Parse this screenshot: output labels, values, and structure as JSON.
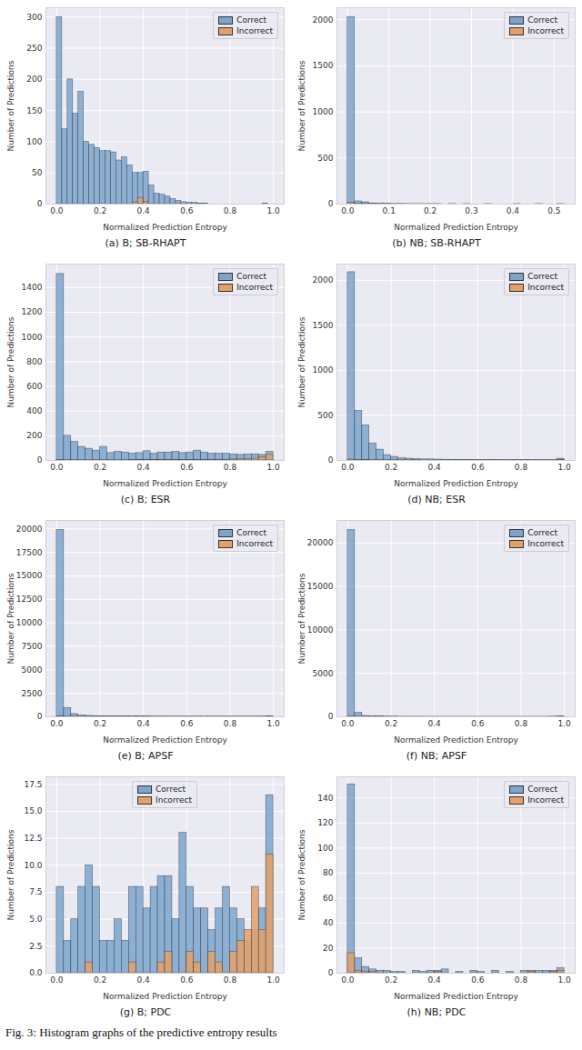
{
  "caption": "Fig. 3: Histogram graphs of the predictive entropy results",
  "chart_data": [
    {
      "type": "histogram",
      "title": "(a) B; SB-RHAPT",
      "x_label": "Normalized Prediction Entropy",
      "y_label": "Number of Predictions",
      "bins": [
        0,
        0.025,
        0.05,
        0.075,
        0.1,
        0.125,
        0.15,
        0.175,
        0.2,
        0.225,
        0.25,
        0.275,
        0.3,
        0.325,
        0.35,
        0.375,
        0.4,
        0.425,
        0.45,
        0.475,
        0.5,
        0.525,
        0.55,
        0.575,
        0.6,
        0.625,
        0.65,
        0.675,
        0.7,
        0.725,
        0.75,
        0.775,
        0.8,
        0.825,
        0.85,
        0.875,
        0.9,
        0.925,
        0.95,
        0.975,
        1
      ],
      "series": [
        {
          "name": "Correct",
          "color": "#7ba5cf",
          "values": [
            300,
            120,
            200,
            145,
            180,
            100,
            95,
            90,
            85,
            85,
            83,
            70,
            75,
            62,
            50,
            50,
            52,
            30,
            17,
            15,
            12,
            8,
            5,
            3,
            2,
            2,
            1,
            1,
            0,
            0,
            0,
            0,
            0,
            0,
            0,
            0,
            0,
            0,
            1,
            0
          ]
        },
        {
          "name": "Incorrect",
          "color": "#e5a068",
          "values": [
            0,
            0,
            0,
            0,
            0,
            0,
            0,
            0,
            0,
            0,
            0,
            0,
            0,
            0,
            3,
            10,
            4,
            0,
            0,
            0,
            0,
            0,
            0,
            0,
            0,
            0,
            0,
            0,
            0,
            0,
            0,
            0,
            0,
            0,
            0,
            0,
            0,
            0,
            0,
            0
          ]
        }
      ],
      "xlim": [
        -0.05,
        1.05
      ],
      "xticks": [
        {
          "value": 0,
          "label": "0.0"
        },
        0.2,
        0.4,
        0.6,
        0.8,
        {
          "value": 1,
          "label": "1.0"
        }
      ],
      "ylim": [
        0,
        315
      ],
      "yticks": [
        0,
        50,
        100,
        150,
        200,
        250,
        300
      ],
      "grid": true,
      "legend": "upper right"
    },
    {
      "type": "histogram",
      "title": "(b) NB; SB-RHAPT",
      "x_label": "Normalized Prediction Entropy",
      "y_label": "Number of Predictions",
      "bins": [
        0,
        0.0175,
        0.035,
        0.0525,
        0.07,
        0.0875,
        0.105,
        0.1225,
        0.14,
        0.1575,
        0.175,
        0.1925,
        0.21,
        0.2275,
        0.245,
        0.2625,
        0.28,
        0.2975,
        0.315,
        0.3325,
        0.35,
        0.3675,
        0.385,
        0.4025,
        0.42,
        0.4375,
        0.455,
        0.4725,
        0.49,
        0.5075,
        0.525
      ],
      "series": [
        {
          "name": "Correct",
          "color": "#7ba5cf",
          "values": [
            2030,
            30,
            20,
            8,
            5,
            3,
            2,
            2,
            1,
            1,
            1,
            1,
            1,
            0,
            1,
            0,
            1,
            0,
            0,
            1,
            0,
            0,
            0,
            1,
            0,
            0,
            1,
            0,
            0,
            1
          ]
        },
        {
          "name": "Incorrect",
          "color": "#e5a068",
          "values": [
            15,
            2,
            1,
            1,
            0,
            0,
            0,
            0,
            0,
            0,
            0,
            0,
            0,
            0,
            0,
            0,
            0,
            0,
            0,
            0,
            0,
            0,
            0,
            0,
            0,
            0,
            0,
            0,
            0,
            0
          ]
        }
      ],
      "xlim": [
        -0.026,
        0.551
      ],
      "xticks": [
        {
          "value": 0,
          "label": "0.0"
        },
        0.1,
        0.2,
        0.3,
        0.4,
        0.5
      ],
      "ylim": [
        0,
        2130
      ],
      "yticks": [
        0,
        500,
        1000,
        1500,
        2000
      ],
      "grid": true,
      "legend": "upper right"
    },
    {
      "type": "histogram",
      "title": "(c) B; ESR",
      "x_label": "Normalized Prediction Entropy",
      "y_label": "Number of Predictions",
      "bins": [
        0,
        0.0333,
        0.0667,
        0.1,
        0.1333,
        0.1667,
        0.2,
        0.2333,
        0.2667,
        0.3,
        0.3333,
        0.3667,
        0.4,
        0.4333,
        0.4667,
        0.5,
        0.5333,
        0.5667,
        0.6,
        0.6333,
        0.6667,
        0.7,
        0.7333,
        0.7667,
        0.8,
        0.8333,
        0.8667,
        0.9,
        0.9333,
        0.9667,
        1
      ],
      "series": [
        {
          "name": "Correct",
          "color": "#7ba5cf",
          "values": [
            1510,
            200,
            150,
            110,
            95,
            80,
            110,
            60,
            70,
            65,
            55,
            60,
            75,
            55,
            65,
            65,
            70,
            60,
            65,
            80,
            65,
            55,
            55,
            55,
            50,
            45,
            50,
            50,
            45,
            70
          ]
        },
        {
          "name": "Incorrect",
          "color": "#e5a068",
          "values": [
            3,
            1,
            1,
            1,
            1,
            1,
            1,
            1,
            1,
            1,
            2,
            2,
            2,
            2,
            2,
            3,
            3,
            3,
            3,
            4,
            4,
            5,
            5,
            6,
            8,
            10,
            12,
            15,
            25,
            45
          ]
        }
      ],
      "xlim": [
        -0.05,
        1.05
      ],
      "xticks": [
        {
          "value": 0,
          "label": "0.0"
        },
        0.2,
        0.4,
        0.6,
        0.8,
        {
          "value": 1,
          "label": "1.0"
        }
      ],
      "ylim": [
        0,
        1590
      ],
      "yticks": [
        0,
        200,
        400,
        600,
        800,
        1000,
        1200,
        1400
      ],
      "grid": true,
      "legend": "upper right"
    },
    {
      "type": "histogram",
      "title": "(d) NB; ESR",
      "x_label": "Normalized Prediction Entropy",
      "y_label": "Number of Predictions",
      "bins": [
        0,
        0.0333,
        0.0667,
        0.1,
        0.1333,
        0.1667,
        0.2,
        0.2333,
        0.2667,
        0.3,
        0.3333,
        0.3667,
        0.4,
        0.4333,
        0.4667,
        0.5,
        0.5333,
        0.5667,
        0.6,
        0.6333,
        0.6667,
        0.7,
        0.7333,
        0.7667,
        0.8,
        0.8333,
        0.8667,
        0.9,
        0.9333,
        0.9667,
        1
      ],
      "series": [
        {
          "name": "Correct",
          "color": "#7ba5cf",
          "values": [
            2090,
            550,
            390,
            190,
            120,
            60,
            40,
            25,
            20,
            15,
            12,
            12,
            10,
            8,
            8,
            6,
            5,
            5,
            4,
            4,
            4,
            3,
            3,
            3,
            3,
            3,
            3,
            3,
            3,
            20
          ]
        },
        {
          "name": "Incorrect",
          "color": "#e5a068",
          "values": [
            10,
            5,
            3,
            2,
            2,
            1,
            1,
            1,
            1,
            1,
            0,
            0,
            0,
            0,
            0,
            0,
            0,
            0,
            0,
            0,
            0,
            0,
            0,
            0,
            0,
            0,
            0,
            0,
            0,
            5
          ]
        }
      ],
      "xlim": [
        -0.05,
        1.05
      ],
      "xticks": [
        {
          "value": 0,
          "label": "0.0"
        },
        0.2,
        0.4,
        0.6,
        0.8,
        {
          "value": 1,
          "label": "1.0"
        }
      ],
      "ylim": [
        0,
        2180
      ],
      "yticks": [
        0,
        500,
        1000,
        1500,
        2000
      ],
      "grid": true,
      "legend": "upper right"
    },
    {
      "type": "histogram",
      "title": "(e) B; APSF",
      "x_label": "Normalized Prediction Entropy",
      "y_label": "Number of Predictions",
      "bins": [
        0,
        0.0333,
        0.0667,
        0.1,
        0.1333,
        0.1667,
        0.2,
        0.2333,
        0.2667,
        0.3,
        0.3333,
        0.3667,
        0.4,
        0.4333,
        0.4667,
        0.5,
        0.5333,
        0.5667,
        0.6,
        0.6333,
        0.6667,
        0.7,
        0.7333,
        0.7667,
        0.8,
        0.8333,
        0.8667,
        0.9,
        0.9333,
        0.9667,
        1
      ],
      "series": [
        {
          "name": "Correct",
          "color": "#7ba5cf",
          "values": [
            19900,
            950,
            300,
            150,
            100,
            80,
            60,
            50,
            40,
            30,
            30,
            25,
            25,
            20,
            20,
            20,
            15,
            15,
            15,
            15,
            15,
            15,
            15,
            15,
            15,
            15,
            15,
            20,
            20,
            50
          ]
        },
        {
          "name": "Incorrect",
          "color": "#e5a068",
          "values": [
            30,
            10,
            5,
            3,
            2,
            2,
            1,
            1,
            1,
            1,
            1,
            1,
            1,
            1,
            1,
            1,
            1,
            1,
            1,
            1,
            1,
            1,
            1,
            1,
            1,
            1,
            1,
            2,
            3,
            20
          ]
        }
      ],
      "xlim": [
        -0.05,
        1.05
      ],
      "xticks": [
        {
          "value": 0,
          "label": "0.0"
        },
        0.2,
        0.4,
        0.6,
        0.8,
        {
          "value": 1,
          "label": "1.0"
        }
      ],
      "ylim": [
        0,
        20900
      ],
      "yticks": [
        0,
        2500,
        5000,
        7500,
        10000,
        12500,
        15000,
        17500,
        20000
      ],
      "grid": true,
      "legend": "upper right"
    },
    {
      "type": "histogram",
      "title": "(f) NB; APSF",
      "x_label": "Normalized Prediction Entropy",
      "y_label": "Number of Predictions",
      "bins": [
        0,
        0.0333,
        0.0667,
        0.1,
        0.1333,
        0.1667,
        0.2,
        0.2333,
        0.2667,
        0.3,
        0.3333,
        0.3667,
        0.4,
        0.4333,
        0.4667,
        0.5,
        0.5333,
        0.5667,
        0.6,
        0.6333,
        0.6667,
        0.7,
        0.7333,
        0.7667,
        0.8,
        0.8333,
        0.8667,
        0.9,
        0.9333,
        0.9667,
        1
      ],
      "series": [
        {
          "name": "Correct",
          "color": "#7ba5cf",
          "values": [
            21500,
            450,
            100,
            50,
            30,
            20,
            15,
            12,
            10,
            10,
            10,
            8,
            8,
            8,
            6,
            6,
            6,
            5,
            5,
            5,
            5,
            5,
            5,
            5,
            5,
            5,
            5,
            6,
            8,
            30
          ]
        },
        {
          "name": "Incorrect",
          "color": "#e5a068",
          "values": [
            20,
            5,
            2,
            1,
            1,
            1,
            1,
            0,
            0,
            0,
            0,
            0,
            0,
            0,
            0,
            0,
            0,
            0,
            0,
            0,
            0,
            0,
            0,
            0,
            0,
            0,
            0,
            0,
            1,
            5
          ]
        }
      ],
      "xlim": [
        -0.05,
        1.05
      ],
      "xticks": [
        {
          "value": 0,
          "label": "0.0"
        },
        0.2,
        0.4,
        0.6,
        0.8,
        {
          "value": 1,
          "label": "1.0"
        }
      ],
      "ylim": [
        0,
        22600
      ],
      "yticks": [
        0,
        5000,
        10000,
        15000,
        20000
      ],
      "grid": true,
      "legend": "upper right"
    },
    {
      "type": "histogram",
      "title": "(g) B; PDC",
      "x_label": "Normalized Prediction Entropy",
      "y_label": "Number of Predictions",
      "bins": [
        0,
        0.0333,
        0.0667,
        0.1,
        0.1333,
        0.1667,
        0.2,
        0.2333,
        0.2667,
        0.3,
        0.3333,
        0.3667,
        0.4,
        0.4333,
        0.4667,
        0.5,
        0.5333,
        0.5667,
        0.6,
        0.6333,
        0.6667,
        0.7,
        0.7333,
        0.7667,
        0.8,
        0.8333,
        0.8667,
        0.9,
        0.9333,
        0.9667,
        1
      ],
      "series": [
        {
          "name": "Correct",
          "color": "#7ba5cf",
          "values": [
            8,
            3,
            5,
            8,
            10,
            8,
            3,
            3,
            5,
            3,
            8,
            8,
            6,
            8,
            9,
            9,
            5,
            13,
            8,
            6,
            6,
            4,
            6,
            8,
            6,
            5,
            3,
            4,
            6,
            16.5
          ]
        },
        {
          "name": "Incorrect",
          "color": "#e5a068",
          "values": [
            0,
            0,
            0,
            0,
            1,
            0,
            0,
            0,
            0,
            0,
            1,
            0,
            0,
            0,
            1,
            2,
            0,
            0,
            2,
            1,
            0,
            2,
            1,
            0,
            2,
            3,
            4,
            8,
            4,
            11
          ]
        }
      ],
      "xlim": [
        -0.05,
        1.05
      ],
      "xticks": [
        {
          "value": 0,
          "label": "0.0"
        },
        0.2,
        0.4,
        0.6,
        0.8,
        {
          "value": 1,
          "label": "1.0"
        }
      ],
      "ylim": [
        0,
        18.2
      ],
      "yticks": [
        {
          "value": 0,
          "label": "0.0"
        },
        2.5,
        {
          "value": 5,
          "label": "5.0"
        },
        7.5,
        {
          "value": 10,
          "label": "10.0"
        },
        12.5,
        {
          "value": 15,
          "label": "15.0"
        },
        17.5
      ],
      "grid": true,
      "legend": "upper center"
    },
    {
      "type": "histogram",
      "title": "(h) NB; PDC",
      "x_label": "Normalized Prediction Entropy",
      "y_label": "Number of Predictions",
      "bins": [
        0,
        0.0333,
        0.0667,
        0.1,
        0.1333,
        0.1667,
        0.2,
        0.2333,
        0.2667,
        0.3,
        0.3333,
        0.3667,
        0.4,
        0.4333,
        0.4667,
        0.5,
        0.5333,
        0.5667,
        0.6,
        0.6333,
        0.6667,
        0.7,
        0.7333,
        0.7667,
        0.8,
        0.8333,
        0.8667,
        0.9,
        0.9333,
        0.9667,
        1
      ],
      "series": [
        {
          "name": "Correct",
          "color": "#7ba5cf",
          "values": [
            151,
            12,
            5,
            3,
            2,
            2,
            1,
            1,
            0,
            2,
            1,
            2,
            2,
            3,
            0,
            1,
            0,
            2,
            1,
            0,
            2,
            0,
            1,
            0,
            2,
            2,
            2,
            2,
            2,
            4
          ]
        },
        {
          "name": "Incorrect",
          "color": "#e5a068",
          "values": [
            16,
            2,
            1,
            1,
            0,
            0,
            0,
            0,
            0,
            0,
            0,
            0,
            1,
            0,
            0,
            0,
            0,
            0,
            0,
            0,
            0,
            0,
            0,
            0,
            0,
            1,
            0,
            0,
            1,
            2
          ]
        }
      ],
      "xlim": [
        -0.05,
        1.05
      ],
      "xticks": [
        {
          "value": 0,
          "label": "0.0"
        },
        0.2,
        0.4,
        0.6,
        0.8,
        {
          "value": 1,
          "label": "1.0"
        }
      ],
      "ylim": [
        0,
        157
      ],
      "yticks": [
        0,
        20,
        40,
        60,
        80,
        100,
        120,
        140
      ],
      "grid": true,
      "legend": "upper right"
    }
  ]
}
